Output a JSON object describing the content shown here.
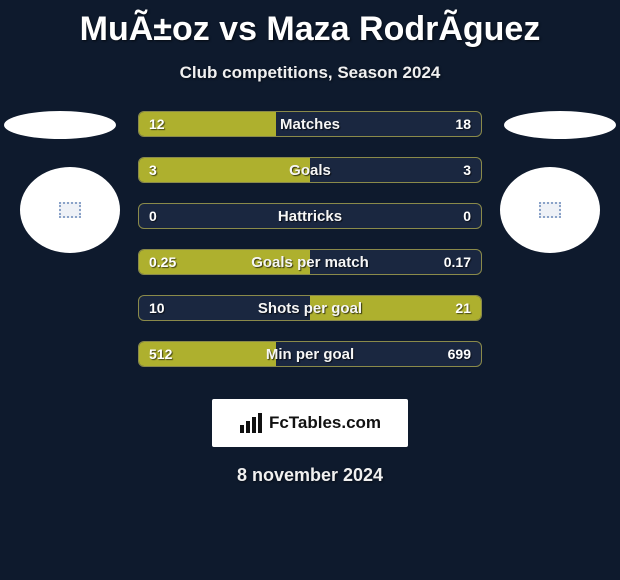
{
  "title": "MuÃ±oz vs Maza RodrÃ­guez",
  "subtitle": "Club competitions, Season 2024",
  "date": "8 november 2024",
  "brand_text": "FcTables.com",
  "colors": {
    "background": "#0e1a2d",
    "bar_fill": "#aeb02e",
    "bar_border": "#8a8a4a",
    "bar_empty": "#1a2740",
    "white": "#ffffff",
    "text": "#f0f0f0"
  },
  "stats": [
    {
      "label": "Matches",
      "left_text": "12",
      "right_text": "18",
      "left_pct": 40,
      "right_pct": 0
    },
    {
      "label": "Goals",
      "left_text": "3",
      "right_text": "3",
      "left_pct": 50,
      "right_pct": 0
    },
    {
      "label": "Hattricks",
      "left_text": "0",
      "right_text": "0",
      "left_pct": 0,
      "right_pct": 0
    },
    {
      "label": "Goals per match",
      "left_text": "0.25",
      "right_text": "0.17",
      "left_pct": 50,
      "right_pct": 0
    },
    {
      "label": "Shots per goal",
      "left_text": "10",
      "right_text": "21",
      "left_pct": 0,
      "right_pct": 50
    },
    {
      "label": "Min per goal",
      "left_text": "512",
      "right_text": "699",
      "left_pct": 40,
      "right_pct": 0
    }
  ]
}
